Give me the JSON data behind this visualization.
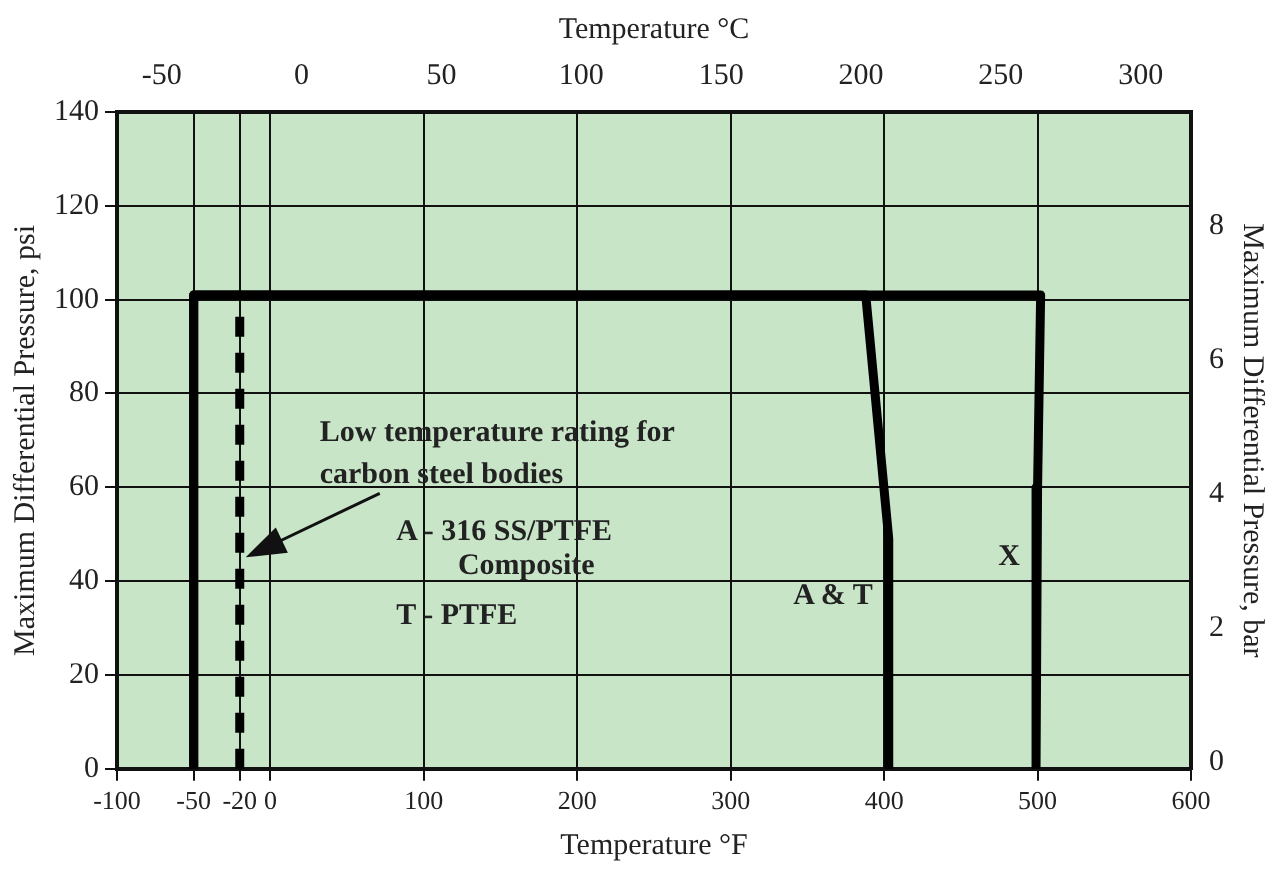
{
  "chart_data": {
    "type": "line",
    "xlabel": "Temperature °F",
    "x2label": "Temperature °C",
    "ylabel": "Maximum Differential Pressure, psi",
    "y2label": "Maximum Differential Pressure, bar",
    "xlim": [
      -100,
      600
    ],
    "xticks": [
      -100,
      -50,
      -20,
      0,
      100,
      200,
      300,
      400,
      500,
      600
    ],
    "x2lim": [
      -66,
      318
    ],
    "x2ticks": [
      -50,
      0,
      50,
      100,
      150,
      200,
      250,
      300
    ],
    "ylim": [
      0,
      140
    ],
    "yticks": [
      0,
      20,
      40,
      60,
      80,
      100,
      120,
      140
    ],
    "y2lim": [
      -0.1,
      9.7
    ],
    "y2ticks": [
      0,
      2,
      4,
      6,
      8
    ],
    "grid": true,
    "legend": false,
    "marker": "none",
    "series": [
      {
        "name": "A & T",
        "color": "#000000",
        "x": [
          -50,
          -50,
          388,
          403,
          403
        ],
        "values": [
          0,
          101,
          101,
          49,
          0
        ]
      },
      {
        "name": "X",
        "color": "#000000",
        "x": [
          -50,
          -50,
          502,
          500,
          499
        ],
        "values": [
          0,
          101,
          101,
          60,
          0
        ]
      },
      {
        "color": "#000000",
        "line_style": "dashed",
        "x": [
          -20,
          -20
        ],
        "values": [
          0,
          98
        ]
      }
    ],
    "annotations": [
      "Low temperature rating for carbon steel bodies",
      "A - 316 SS/PTFE Composite",
      "T - PTFE"
    ]
  }
}
